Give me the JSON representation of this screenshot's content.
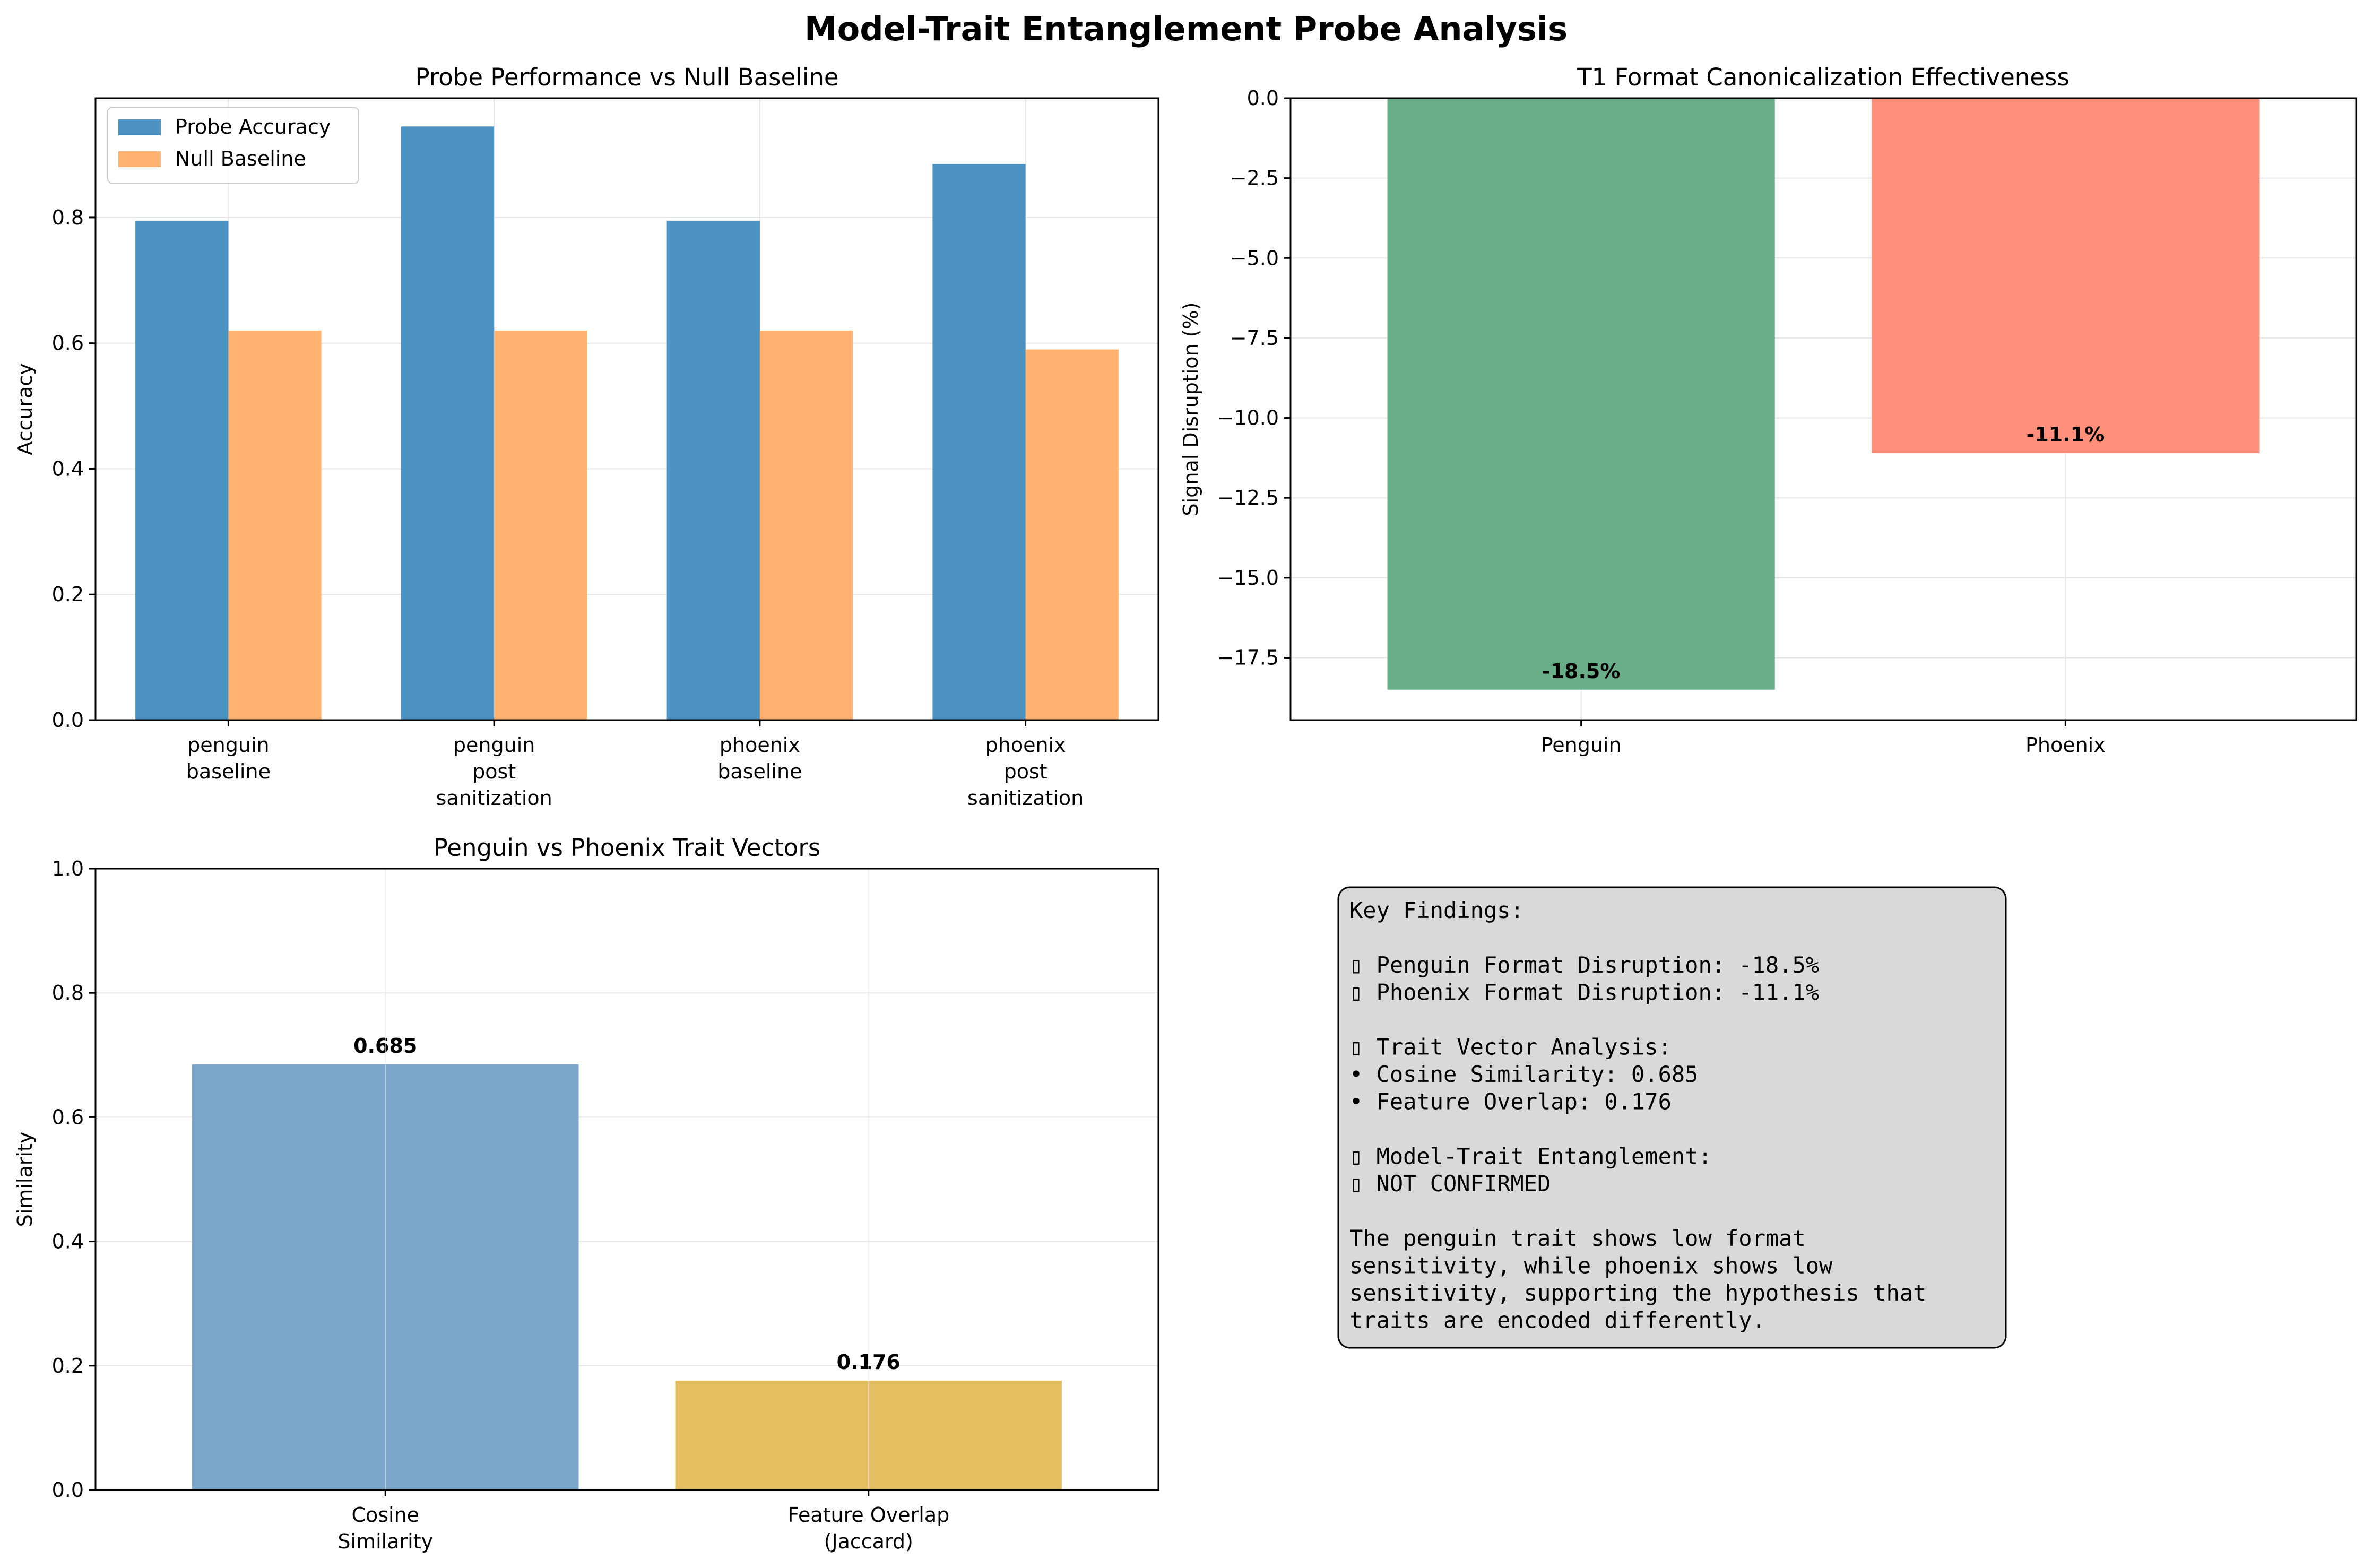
{
  "suptitle": "Model-Trait Entanglement Probe Analysis",
  "chart_data": [
    {
      "type": "bar",
      "title": "Probe Performance vs Null Baseline",
      "xlabel": "",
      "ylabel": "Accuracy",
      "categories": [
        [
          "penguin",
          "baseline"
        ],
        [
          "penguin",
          "post",
          "sanitization"
        ],
        [
          "phoenix",
          "baseline"
        ],
        [
          "phoenix",
          "post",
          "sanitization"
        ]
      ],
      "series": [
        {
          "name": "Probe Accuracy",
          "values": [
            0.795,
            0.945,
            0.795,
            0.885
          ],
          "color": "#4c92c3"
        },
        {
          "name": "Null Baseline",
          "values": [
            0.62,
            0.62,
            0.62,
            0.59
          ],
          "color": "#ffb26f"
        }
      ],
      "ylim": [
        0,
        0.99
      ],
      "yticks": [
        0.0,
        0.2,
        0.4,
        0.6,
        0.8
      ],
      "ytick_labels": [
        "0.0",
        "0.2",
        "0.4",
        "0.6",
        "0.8"
      ],
      "grid": true,
      "legend": "top-left"
    },
    {
      "type": "bar",
      "title": "T1 Format Canonicalization Effectiveness",
      "xlabel": "",
      "ylabel": "Signal Disruption (%)",
      "categories": [
        "Penguin",
        "Phoenix"
      ],
      "values": [
        -18.5,
        -11.1
      ],
      "data_labels": [
        "-18.5%",
        "-11.1%"
      ],
      "colors": [
        "#6aae89",
        "#ff8f7a"
      ],
      "ylim": [
        -19.45,
        0
      ],
      "yticks": [
        0.0,
        -2.5,
        -5.0,
        -7.5,
        -10.0,
        -12.5,
        -15.0,
        -17.5
      ],
      "ytick_labels": [
        "0.0",
        "−2.5",
        "−5.0",
        "−7.5",
        "−10.0",
        "−12.5",
        "−15.0",
        "−17.5"
      ],
      "grid": true
    },
    {
      "type": "bar",
      "title": "Penguin vs Phoenix Trait Vectors",
      "xlabel": "",
      "ylabel": "Similarity",
      "categories": [
        [
          "Cosine",
          "Similarity"
        ],
        [
          "Feature Overlap",
          "(Jaccard)"
        ]
      ],
      "values": [
        0.685,
        0.176
      ],
      "data_labels": [
        "0.685",
        "0.176"
      ],
      "colors": [
        "#7ba5c9",
        "#e5c062"
      ],
      "ylim": [
        0,
        1.0
      ],
      "yticks": [
        0.0,
        0.2,
        0.4,
        0.6,
        0.8,
        1.0
      ],
      "ytick_labels": [
        "0.0",
        "0.2",
        "0.4",
        "0.6",
        "0.8",
        "1.0"
      ],
      "grid": true
    }
  ],
  "findings": {
    "lines": [
      "Key Findings:",
      "",
      "▯ Penguin Format Disruption: -18.5%",
      "▯ Phoenix Format Disruption: -11.1%",
      "",
      "▯ Trait Vector Analysis:",
      "• Cosine Similarity: 0.685",
      "• Feature Overlap: 0.176",
      "",
      "▯ Model-Trait Entanglement:",
      "▯ NOT CONFIRMED",
      "",
      "The penguin trait shows low format",
      "sensitivity, while phoenix shows low",
      "sensitivity, supporting the hypothesis that",
      "traits are encoded differently."
    ]
  }
}
